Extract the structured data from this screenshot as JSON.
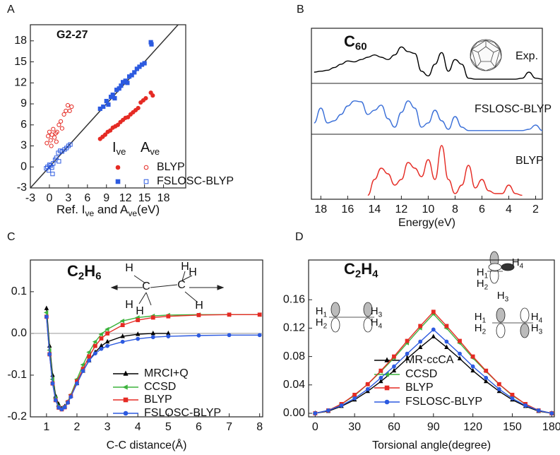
{
  "chart_data": [
    {
      "type": "scatter",
      "panel": "A",
      "title": "G2-27",
      "x_label": [
        "Ref. ",
        "I",
        "ve",
        " and ",
        "A",
        "ve",
        "(eV)"
      ],
      "xlim": [
        -3,
        21.5
      ],
      "ylim": [
        -3,
        20.3
      ],
      "xticks": [
        -3,
        0,
        3,
        6,
        9,
        12,
        15,
        18
      ],
      "yticks": [
        -3,
        0,
        3,
        6,
        9,
        12,
        15,
        18
      ],
      "diagonal": true,
      "legend_columns": [
        [
          "I",
          "ve"
        ],
        [
          "A",
          "ve"
        ]
      ],
      "groups": [
        {
          "name": "BLYP",
          "color": "#e52b24",
          "marker": "circle",
          "ive": {
            "x": [
              8.0,
              8.4,
              8.8,
              9.2,
              9.6,
              10.0,
              10.4,
              10.8,
              11.2,
              11.6,
              12.0,
              12.4,
              12.8,
              13.2,
              13.6,
              14.0,
              14.4,
              14.8,
              15.2,
              16.0,
              16.3
            ],
            "y": [
              4.0,
              4.3,
              4.6,
              5.0,
              5.2,
              5.6,
              5.8,
              6.0,
              6.4,
              6.7,
              7.0,
              7.1,
              7.5,
              7.8,
              8.1,
              8.4,
              9.2,
              9.5,
              9.8,
              10.6,
              10.2
            ]
          },
          "ave": {
            "x": [
              -0.4,
              -0.2,
              0.0,
              0.2,
              0.4,
              0.6,
              0.8,
              1.0,
              1.2,
              1.5,
              1.8,
              2.0,
              2.3,
              2.6,
              2.9,
              3.2,
              3.5,
              0.3,
              1.1
            ],
            "y": [
              3.4,
              4.4,
              5.0,
              3.8,
              4.6,
              5.4,
              4.2,
              4.8,
              5.0,
              6.0,
              6.5,
              5.5,
              7.5,
              8.0,
              8.8,
              8.0,
              8.6,
              3.0,
              3.6
            ]
          }
        },
        {
          "name": "FSLOSC-BLYP",
          "color": "#2c5ae0",
          "marker": "square",
          "ive": {
            "x": [
              8.0,
              8.5,
              9.0,
              9.3,
              9.7,
              10.0,
              10.3,
              10.6,
              11.0,
              11.3,
              11.6,
              12.0,
              12.3,
              12.6,
              13.0,
              13.4,
              13.8,
              14.2,
              14.6,
              15.0,
              16.0,
              16.1
            ],
            "y": [
              8.3,
              8.6,
              9.4,
              8.9,
              10.0,
              10.3,
              9.8,
              11.0,
              11.2,
              11.6,
              12.1,
              12.3,
              12.0,
              12.9,
              13.1,
              13.5,
              14.0,
              14.3,
              14.6,
              14.8,
              17.8,
              17.5
            ]
          },
          "ave": {
            "x": [
              -0.5,
              -0.3,
              -0.1,
              0.0,
              0.2,
              0.4,
              0.6,
              0.9,
              1.1,
              1.4,
              1.7,
              2.0,
              2.4,
              2.7,
              3.0,
              3.3,
              0.5,
              1.5
            ],
            "y": [
              -0.2,
              0.0,
              -0.5,
              0.3,
              0.2,
              -0.1,
              0.5,
              1.0,
              1.3,
              2.0,
              2.3,
              2.2,
              2.5,
              2.7,
              3.0,
              3.2,
              -1.0,
              0.8
            ]
          }
        }
      ]
    },
    {
      "type": "spectra",
      "panel": "B",
      "title": [
        "C",
        "60"
      ],
      "x_label": "Energy(eV)",
      "xlim": [
        18.7,
        1.5
      ],
      "xticks": [
        18,
        16,
        14,
        12,
        10,
        8,
        6,
        4,
        2
      ],
      "ylim": [
        0,
        1
      ],
      "series": [
        {
          "name": "Exp.",
          "color": "#000000",
          "x": [
            18.5,
            18,
            17.5,
            17,
            16.5,
            16,
            15.5,
            15,
            14.5,
            14,
            13.5,
            13,
            12.5,
            12,
            11.5,
            11,
            10.5,
            10,
            9.5,
            9,
            8.5,
            8,
            7.5,
            7,
            6.5,
            6,
            5.5,
            5,
            4.5,
            4,
            3.5,
            3,
            2.5,
            2,
            1.5
          ],
          "values": [
            0.18,
            0.2,
            0.22,
            0.28,
            0.35,
            0.42,
            0.4,
            0.45,
            0.5,
            0.55,
            0.5,
            0.45,
            0.55,
            0.72,
            0.62,
            0.58,
            0.2,
            0.1,
            0.35,
            0.6,
            0.2,
            0.45,
            0.35,
            0.05,
            0.03,
            0.03,
            0.03,
            0.03,
            0.03,
            0.03,
            0.03,
            0.05,
            0.18,
            0.05,
            0.03
          ]
        },
        {
          "name": "FSLOSC-BLYP",
          "color": "#3a6fd8",
          "x": [
            18.5,
            18,
            17.5,
            17,
            16.5,
            16,
            15.5,
            15,
            14.5,
            14,
            13.5,
            13,
            12.5,
            12,
            11.5,
            11,
            10.5,
            10,
            9.5,
            9,
            8.5,
            8,
            7.5,
            7,
            6.5,
            6,
            5.5,
            5,
            4.5,
            4,
            3.5,
            3,
            2.5,
            2,
            1.5
          ],
          "values": [
            0.2,
            0.55,
            0.2,
            0.25,
            0.4,
            0.6,
            0.72,
            0.7,
            0.4,
            0.5,
            0.62,
            0.3,
            0.1,
            0.45,
            0.72,
            0.55,
            0.1,
            0.2,
            0.5,
            0.25,
            0.05,
            0.35,
            0.1,
            0.02,
            0.02,
            0.02,
            0.02,
            0.02,
            0.02,
            0.02,
            0.02,
            0.02,
            0.05,
            0.15,
            0.02
          ]
        },
        {
          "name": "BLYP",
          "color": "#e52b24",
          "x": [
            14.5,
            14,
            13.5,
            13,
            12.5,
            12,
            11.5,
            11,
            10.5,
            10,
            9.5,
            9,
            8.5,
            8,
            7.5,
            7,
            6.5,
            6,
            5.5,
            5,
            4.5,
            4,
            3.5,
            3
          ],
          "values": [
            0.02,
            0.3,
            0.5,
            0.4,
            0.2,
            0.3,
            0.6,
            0.5,
            0.35,
            0.65,
            0.3,
            0.9,
            0.3,
            0.05,
            0.2,
            0.55,
            0.15,
            0.3,
            0.1,
            0.05,
            0.05,
            0.2,
            0.05,
            0.02
          ]
        }
      ]
    },
    {
      "type": "line",
      "panel": "C",
      "title": [
        "C",
        "2",
        "H",
        "6"
      ],
      "x_label": "C-C distance(Å)",
      "xlim": [
        0.47,
        8.1
      ],
      "ylim": [
        -0.2,
        0.176
      ],
      "xticks": [
        1,
        2,
        3,
        4,
        5,
        6,
        7,
        8
      ],
      "yticks": [
        -0.2,
        -0.1,
        {
          "value": 0,
          "label": "0.0"
        },
        0.1
      ],
      "zero_line": true,
      "molecule": [
        "H",
        "C",
        "H",
        "H",
        "C",
        "H",
        "H",
        "H"
      ],
      "series": [
        {
          "name": "MRCI+Q",
          "color": "#000000",
          "marker": "triangle",
          "x": [
            1.0,
            1.1,
            1.2,
            1.3,
            1.4,
            1.5,
            1.6,
            1.7,
            1.8,
            2.0,
            2.2,
            2.4,
            2.6,
            2.8,
            3.0,
            3.5,
            4.0,
            4.5,
            5.0
          ],
          "values": [
            0.06,
            -0.03,
            -0.1,
            -0.15,
            -0.17,
            -0.18,
            -0.175,
            -0.165,
            -0.15,
            -0.12,
            -0.09,
            -0.065,
            -0.045,
            -0.03,
            -0.02,
            -0.007,
            -0.002,
            0.0,
            0.0
          ]
        },
        {
          "name": "CCSD",
          "color": "#3db33d",
          "marker": "tri-left",
          "x": [
            1.0,
            1.1,
            1.2,
            1.3,
            1.4,
            1.5,
            1.6,
            1.7,
            1.8,
            2.0,
            2.2,
            2.4,
            2.6,
            2.8,
            3.0,
            3.5,
            4.0,
            4.5,
            5.0,
            6.0,
            7.0,
            8.0
          ],
          "values": [
            0.05,
            -0.04,
            -0.11,
            -0.155,
            -0.175,
            -0.18,
            -0.175,
            -0.163,
            -0.147,
            -0.11,
            -0.075,
            -0.045,
            -0.02,
            -0.002,
            0.01,
            0.03,
            0.038,
            0.042,
            0.044,
            0.045,
            0.045,
            0.045
          ]
        },
        {
          "name": "BLYP",
          "color": "#e52b24",
          "marker": "square",
          "x": [
            1.0,
            1.1,
            1.2,
            1.3,
            1.4,
            1.5,
            1.6,
            1.7,
            1.8,
            2.0,
            2.2,
            2.4,
            2.6,
            2.8,
            3.0,
            3.5,
            4.0,
            4.5,
            5.0,
            6.0,
            7.0,
            8.0
          ],
          "values": [
            0.04,
            -0.05,
            -0.12,
            -0.16,
            -0.178,
            -0.182,
            -0.177,
            -0.165,
            -0.15,
            -0.115,
            -0.085,
            -0.055,
            -0.03,
            -0.012,
            0.0,
            0.02,
            0.032,
            0.038,
            0.041,
            0.044,
            0.045,
            0.045
          ]
        },
        {
          "name": "FSLOSC-BLYP",
          "color": "#2c5ae0",
          "marker": "circle",
          "x": [
            1.0,
            1.1,
            1.2,
            1.3,
            1.4,
            1.5,
            1.6,
            1.7,
            1.8,
            2.0,
            2.2,
            2.4,
            2.6,
            2.8,
            3.0,
            3.5,
            4.0,
            4.5,
            5.0,
            6.0,
            7.0,
            8.0
          ],
          "values": [
            0.04,
            -0.05,
            -0.12,
            -0.16,
            -0.178,
            -0.182,
            -0.177,
            -0.166,
            -0.152,
            -0.12,
            -0.09,
            -0.065,
            -0.048,
            -0.037,
            -0.03,
            -0.02,
            -0.013,
            -0.009,
            -0.007,
            -0.005,
            -0.004,
            -0.004
          ]
        }
      ]
    },
    {
      "type": "line",
      "panel": "D",
      "title": [
        "C",
        "2",
        "H",
        "4"
      ],
      "x_label": "Torsional angle(degree)",
      "xlim": [
        -5,
        182
      ],
      "ylim": [
        -0.005,
        0.216
      ],
      "xticks": [
        0,
        30,
        60,
        90,
        120,
        150,
        180
      ],
      "yticks": [
        {
          "value": 0,
          "label": "0.00"
        },
        0.04,
        0.08,
        0.12,
        0.16
      ],
      "molecules": [
        [
          [
            "H",
            "1"
          ],
          [
            "H",
            "2"
          ],
          [
            "H",
            "3"
          ],
          [
            "H",
            "4"
          ]
        ],
        [
          [
            "H",
            "1"
          ],
          [
            "H",
            "2"
          ],
          [
            "H",
            "3"
          ],
          [
            "H",
            "4"
          ]
        ],
        [
          [
            "H",
            "1"
          ],
          [
            "H",
            "2"
          ],
          [
            "H",
            "3"
          ],
          [
            "H",
            "4"
          ]
        ]
      ],
      "series": [
        {
          "name": "MR-ccCA",
          "color": "#000000",
          "marker": "triangle",
          "x": [
            0,
            10,
            20,
            30,
            40,
            50,
            60,
            70,
            80,
            90,
            100,
            110,
            120,
            130,
            140,
            150,
            160,
            170,
            180
          ],
          "values": [
            0,
            0.003,
            0.01,
            0.019,
            0.031,
            0.045,
            0.06,
            0.077,
            0.093,
            0.108,
            0.093,
            0.077,
            0.06,
            0.045,
            0.031,
            0.019,
            0.01,
            0.003,
            0
          ]
        },
        {
          "name": "CCSD",
          "color": "#3db33d",
          "marker": "tri-left",
          "x": [
            0,
            10,
            20,
            30,
            40,
            50,
            60,
            70,
            80,
            90,
            100,
            110,
            120,
            130,
            140,
            150,
            160,
            170,
            180
          ],
          "values": [
            0,
            0.004,
            0.013,
            0.025,
            0.041,
            0.059,
            0.078,
            0.099,
            0.12,
            0.14,
            0.12,
            0.099,
            0.078,
            0.059,
            0.041,
            0.025,
            0.013,
            0.004,
            0
          ]
        },
        {
          "name": "BLYP",
          "color": "#e52b24",
          "marker": "square",
          "x": [
            0,
            10,
            20,
            30,
            40,
            50,
            60,
            70,
            80,
            90,
            100,
            110,
            120,
            130,
            140,
            150,
            160,
            170,
            180
          ],
          "values": [
            0,
            0.004,
            0.013,
            0.026,
            0.041,
            0.06,
            0.08,
            0.102,
            0.123,
            0.143,
            0.123,
            0.102,
            0.08,
            0.06,
            0.041,
            0.026,
            0.013,
            0.004,
            0
          ]
        },
        {
          "name": "FSLOSC-BLYP",
          "color": "#2c5ae0",
          "marker": "circle",
          "x": [
            0,
            10,
            20,
            30,
            40,
            50,
            60,
            70,
            80,
            90,
            100,
            110,
            120,
            130,
            140,
            150,
            160,
            170,
            180
          ],
          "values": [
            0,
            0.004,
            0.011,
            0.021,
            0.034,
            0.05,
            0.066,
            0.084,
            0.101,
            0.118,
            0.101,
            0.084,
            0.066,
            0.05,
            0.034,
            0.021,
            0.011,
            0.004,
            0
          ]
        }
      ]
    }
  ]
}
